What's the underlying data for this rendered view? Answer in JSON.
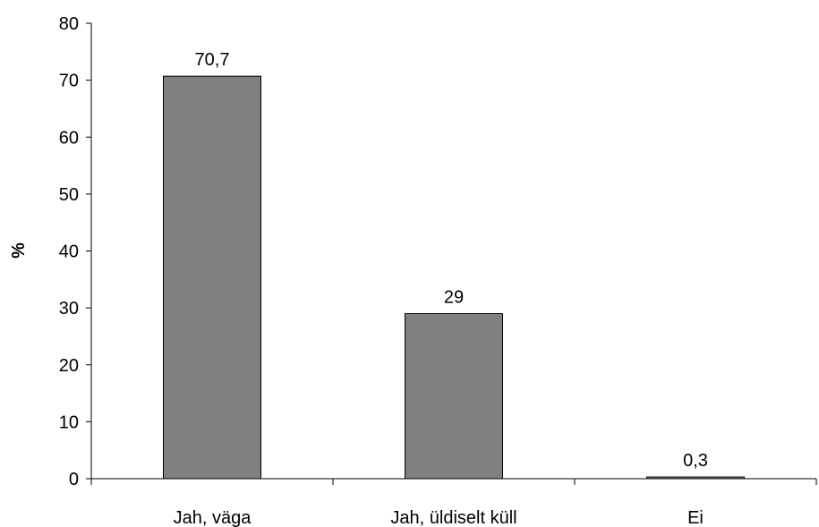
{
  "chart_data": {
    "type": "bar",
    "title": "",
    "xlabel": "",
    "ylabel": "%",
    "categories": [
      "Jah, väga",
      "Jah, üldiselt küll",
      "Ei"
    ],
    "values": [
      70.7,
      29,
      0.3
    ],
    "data_labels": [
      "70,7",
      "29",
      "0,3"
    ],
    "ylim": [
      0,
      80
    ],
    "yticks": [
      0,
      10,
      20,
      30,
      40,
      50,
      60,
      70,
      80
    ],
    "grid": false,
    "legend": "none",
    "colors": {
      "bar_fill": "#808080",
      "bar_stroke": "#000000",
      "axis": "#000000",
      "text": "#000000"
    }
  }
}
